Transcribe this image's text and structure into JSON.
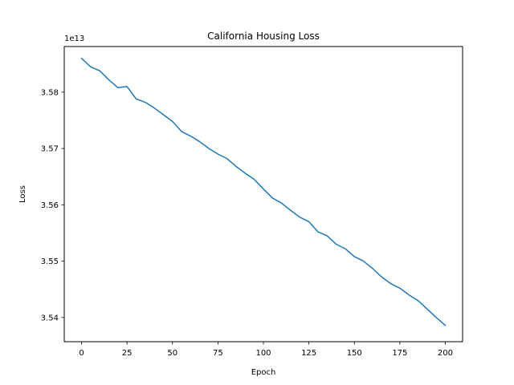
{
  "chart_data": {
    "type": "line",
    "title": "California Housing Loss",
    "xlabel": "Epoch",
    "ylabel": "Loss",
    "y_offset_label": "1e13",
    "y_scale": 10000000000000.0,
    "xlim": [
      -9.5,
      209.5
    ],
    "ylim": [
      3.5357,
      3.5881
    ],
    "grid": false,
    "x_ticks": [
      0,
      25,
      50,
      75,
      100,
      125,
      150,
      175,
      200
    ],
    "x_tick_labels": [
      "0",
      "25",
      "50",
      "75",
      "100",
      "125",
      "150",
      "175",
      "200"
    ],
    "y_ticks": [
      3.54,
      3.55,
      3.56,
      3.57,
      3.58
    ],
    "y_tick_labels": [
      "3.54",
      "3.55",
      "3.56",
      "3.57",
      "3.58"
    ],
    "series": [
      {
        "color": "#1f77b4",
        "x": [
          0,
          5,
          10,
          15,
          20,
          25,
          30,
          35,
          40,
          45,
          50,
          55,
          60,
          65,
          70,
          75,
          80,
          85,
          90,
          95,
          100,
          105,
          110,
          115,
          120,
          125,
          130,
          135,
          140,
          145,
          150,
          155,
          160,
          165,
          170,
          175,
          180,
          185,
          190,
          195,
          200
        ],
        "y": [
          3.586,
          3.5845,
          3.5838,
          3.5822,
          3.5808,
          3.581,
          3.5788,
          3.5782,
          3.5772,
          3.576,
          3.5748,
          3.573,
          3.5722,
          3.5712,
          3.57,
          3.569,
          3.5682,
          3.5668,
          3.5656,
          3.5645,
          3.5628,
          3.5612,
          3.5603,
          3.559,
          3.5578,
          3.557,
          3.5552,
          3.5545,
          3.553,
          3.5522,
          3.5508,
          3.55,
          3.5487,
          3.5472,
          3.546,
          3.5452,
          3.544,
          3.543,
          3.5415,
          3.54,
          3.5386
        ]
      }
    ]
  }
}
